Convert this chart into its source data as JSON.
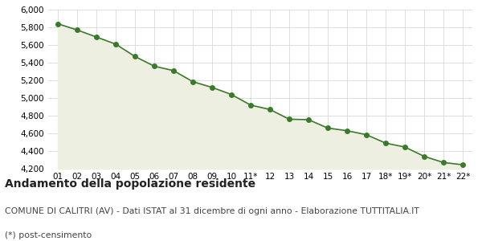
{
  "x_labels": [
    "01",
    "02",
    "03",
    "04",
    "05",
    "06",
    "07",
    "08",
    "09",
    "10",
    "11*",
    "12",
    "13",
    "14",
    "15",
    "16",
    "17",
    "18*",
    "19*",
    "20*",
    "21*",
    "22*"
  ],
  "y_values": [
    5840,
    5770,
    5690,
    5610,
    5470,
    5360,
    5310,
    5185,
    5120,
    5040,
    4920,
    4870,
    4760,
    4755,
    4660,
    4630,
    4585,
    4490,
    4445,
    4340,
    4270,
    4245
  ],
  "line_color": "#3a7a2a",
  "fill_color": "#edf0e0",
  "marker_color": "#3a7a2a",
  "bg_color": "#ffffff",
  "grid_color": "#d0d0d0",
  "ylim_min": 4200,
  "ylim_max": 6000,
  "ytick_step": 200,
  "title": "Andamento della popolazione residente",
  "subtitle": "COMUNE DI CALITRI (AV) - Dati ISTAT al 31 dicembre di ogni anno - Elaborazione TUTTITALIA.IT",
  "footnote": "(*) post-censimento",
  "title_fontsize": 10,
  "subtitle_fontsize": 7.8,
  "footnote_fontsize": 7.8,
  "tick_fontsize": 7.5
}
